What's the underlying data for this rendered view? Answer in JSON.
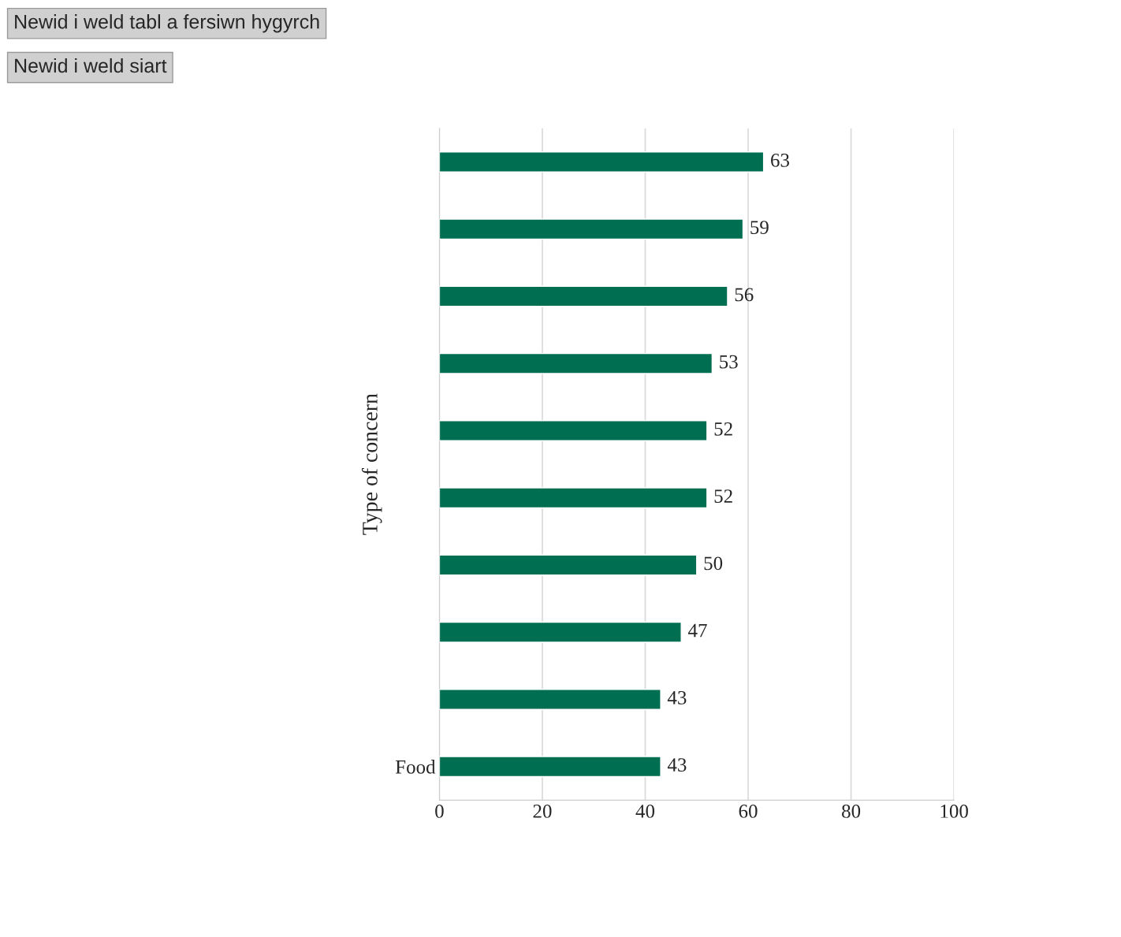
{
  "chart_data": {
    "type": "bar",
    "orientation": "horizontal",
    "categories": [
      null,
      null,
      null,
      null,
      null,
      null,
      null,
      null,
      null,
      "Food"
    ],
    "values": [
      63,
      59,
      56,
      53,
      52,
      52,
      50,
      47,
      43,
      43
    ],
    "color": "#006e51",
    "xlim": [
      0,
      100
    ],
    "xticks": [
      0,
      20,
      40,
      60,
      80,
      100
    ],
    "ylabel": "Type of concern",
    "data_labels": true,
    "grid": "x",
    "annotations": [
      "Newid i weld tabl a fersiwn hygyrch",
      "Newid i weld siart"
    ]
  }
}
